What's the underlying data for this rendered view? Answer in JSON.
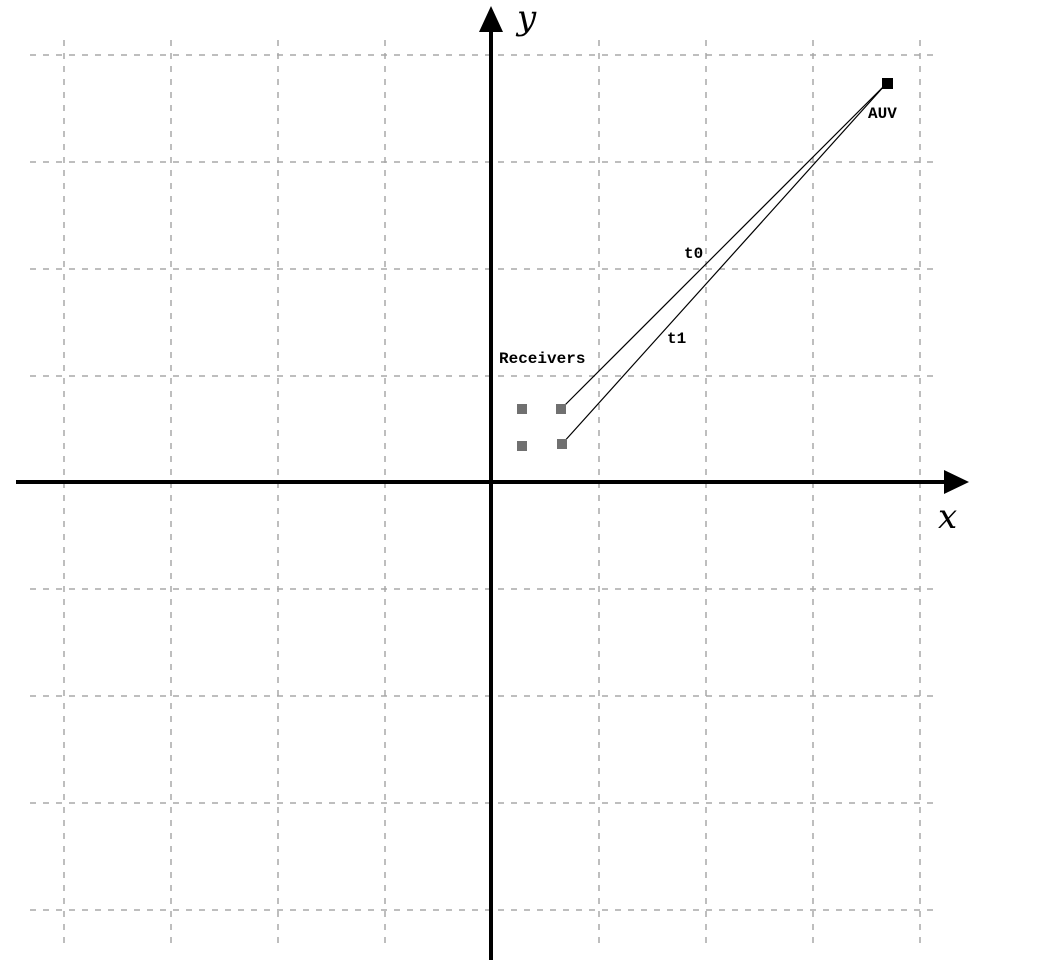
{
  "axes": {
    "x_label": "x",
    "y_label": "y"
  },
  "labels": {
    "auv": "AUV",
    "receivers": "Receivers",
    "t0": "t0",
    "t1": "t1"
  },
  "colors": {
    "grid": "#a8a8a8",
    "axis": "#000000",
    "receiver": "#707070",
    "auv": "#000000"
  },
  "icons": {
    "x_axis_arrow": "triangle-right",
    "y_axis_arrow": "triangle-up",
    "receiver_marker": "square-dot",
    "auv_marker": "square-dot"
  }
}
